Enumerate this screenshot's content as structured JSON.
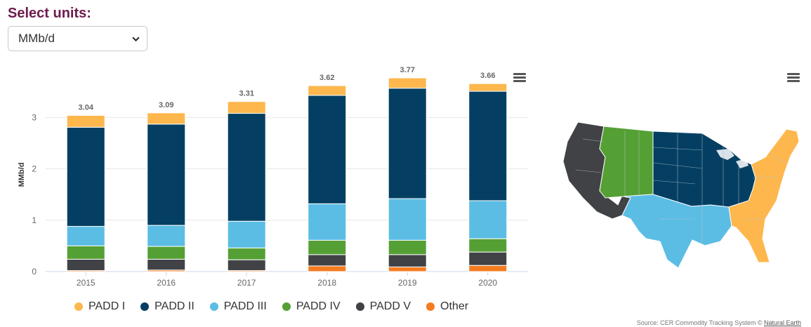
{
  "header": {
    "title": "Select units:",
    "unit_selected": "MMb/d"
  },
  "chart_data": {
    "type": "bar",
    "stacked": true,
    "categories": [
      "2015",
      "2016",
      "2017",
      "2018",
      "2019",
      "2020"
    ],
    "series": [
      {
        "name": "Other",
        "color": "#f47c20",
        "values": [
          0.02,
          0.03,
          0.02,
          0.11,
          0.09,
          0.12
        ]
      },
      {
        "name": "PADD V",
        "color": "#414246",
        "values": [
          0.22,
          0.21,
          0.21,
          0.22,
          0.24,
          0.26
        ]
      },
      {
        "name": "PADD IV",
        "color": "#55a035",
        "values": [
          0.26,
          0.25,
          0.23,
          0.28,
          0.28,
          0.26
        ]
      },
      {
        "name": "PADD III",
        "color": "#5bbde4",
        "values": [
          0.38,
          0.41,
          0.52,
          0.71,
          0.81,
          0.74
        ]
      },
      {
        "name": "PADD II",
        "color": "#043f63",
        "values": [
          1.93,
          1.97,
          2.1,
          2.11,
          2.15,
          2.13
        ]
      },
      {
        "name": "PADD I",
        "color": "#fdb74d",
        "values": [
          0.23,
          0.22,
          0.23,
          0.19,
          0.2,
          0.15
        ]
      }
    ],
    "totals": [
      "3.04",
      "3.09",
      "3.31",
      "3.62",
      "3.77",
      "3.66"
    ],
    "ylabel": "MMb/d",
    "yticks": [
      "0",
      "1",
      "2",
      "3"
    ],
    "ylim": [
      0,
      4
    ],
    "grid": true,
    "legend_position": "bottom"
  },
  "legend": [
    {
      "label": "PADD I",
      "color": "#fdb74d"
    },
    {
      "label": "PADD II",
      "color": "#043f63"
    },
    {
      "label": "PADD III",
      "color": "#5bbde4"
    },
    {
      "label": "PADD IV",
      "color": "#55a035"
    },
    {
      "label": "PADD V",
      "color": "#414246"
    },
    {
      "label": "Other",
      "color": "#f47c20"
    }
  ],
  "map": {
    "padd_colors": {
      "padd1": "#fdb74d",
      "padd2": "#043f63",
      "padd3": "#5bbde4",
      "padd4": "#55a035",
      "padd5": "#414246"
    }
  },
  "footer": {
    "source_text": "Source: CER Commodity Tracking System ©",
    "source_link": "Natural Earth"
  },
  "icons": {
    "chart_menu": "hamburger-menu-icon",
    "map_menu": "hamburger-menu-icon",
    "select": "chevron-down-icon"
  }
}
